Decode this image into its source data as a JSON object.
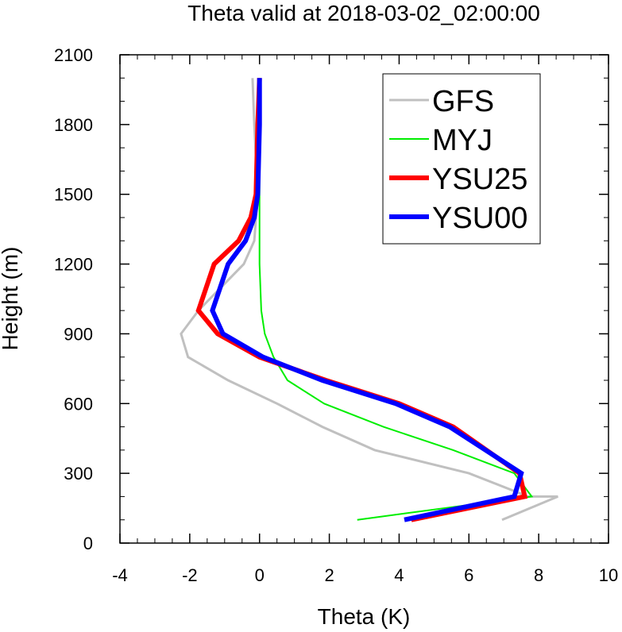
{
  "chart_data": {
    "type": "line",
    "title": "Theta valid at 2018-03-02_02:00:00",
    "xlabel": "Theta (K)",
    "ylabel": "Height (m)",
    "xlim": [
      -4,
      10
    ],
    "ylim": [
      0,
      2100
    ],
    "xticks": [
      -4,
      -2,
      0,
      2,
      4,
      6,
      8,
      10
    ],
    "yticks": [
      0,
      300,
      600,
      900,
      1200,
      1500,
      1800,
      2100
    ],
    "grid": false,
    "legend_position": "top-right",
    "series": [
      {
        "name": "GFS",
        "color": "#c0c0c0",
        "width": 3,
        "points": [
          [
            6.95,
            100
          ],
          [
            8.55,
            200
          ],
          [
            7.7,
            200
          ],
          [
            6.0,
            300
          ],
          [
            3.3,
            400
          ],
          [
            1.8,
            500
          ],
          [
            0.5,
            600
          ],
          [
            -0.9,
            700
          ],
          [
            -2.05,
            800
          ],
          [
            -2.25,
            900
          ],
          [
            -1.75,
            1000
          ],
          [
            -0.45,
            1200
          ],
          [
            -0.15,
            1300
          ],
          [
            -0.05,
            1500
          ],
          [
            -0.15,
            1800
          ],
          [
            -0.2,
            2000
          ]
        ]
      },
      {
        "name": "MYJ",
        "color": "#00ee00",
        "width": 2,
        "points": [
          [
            2.8,
            100
          ],
          [
            7.8,
            200
          ],
          [
            7.3,
            300
          ],
          [
            5.55,
            400
          ],
          [
            3.55,
            500
          ],
          [
            1.85,
            600
          ],
          [
            0.8,
            700
          ],
          [
            0.4,
            800
          ],
          [
            0.15,
            900
          ],
          [
            0.05,
            1000
          ],
          [
            0.0,
            1200
          ],
          [
            0.0,
            1500
          ],
          [
            0.0,
            1800
          ],
          [
            0.0,
            2000
          ]
        ]
      },
      {
        "name": "YSU25",
        "color": "#ff0000",
        "width": 6,
        "points": [
          [
            4.35,
            100
          ],
          [
            7.6,
            200
          ],
          [
            7.45,
            300
          ],
          [
            5.55,
            500
          ],
          [
            4.0,
            600
          ],
          [
            1.9,
            700
          ],
          [
            0.0,
            800
          ],
          [
            -1.2,
            900
          ],
          [
            -1.75,
            1000
          ],
          [
            -1.3,
            1200
          ],
          [
            -0.6,
            1300
          ],
          [
            -0.25,
            1400
          ],
          [
            -0.1,
            1500
          ],
          [
            -0.05,
            1800
          ],
          [
            0.0,
            2000
          ]
        ]
      },
      {
        "name": "YSU00",
        "color": "#0000ff",
        "width": 6,
        "points": [
          [
            4.15,
            100
          ],
          [
            7.3,
            200
          ],
          [
            7.5,
            300
          ],
          [
            5.45,
            500
          ],
          [
            3.9,
            600
          ],
          [
            1.8,
            700
          ],
          [
            0.1,
            800
          ],
          [
            -1.05,
            900
          ],
          [
            -1.35,
            1000
          ],
          [
            -0.9,
            1200
          ],
          [
            -0.4,
            1300
          ],
          [
            -0.15,
            1400
          ],
          [
            -0.05,
            1500
          ],
          [
            0.0,
            1800
          ],
          [
            0.0,
            2000
          ]
        ]
      }
    ]
  }
}
